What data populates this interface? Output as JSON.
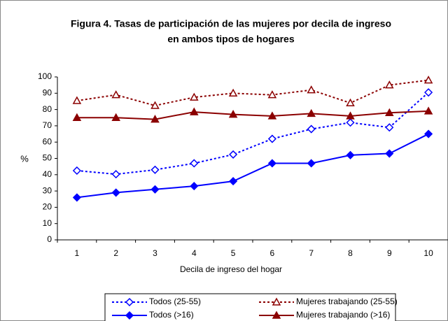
{
  "chart_data": {
    "type": "line",
    "title": [
      "Figura 4. Tasas de participación de las mujeres por decila de ingreso",
      "en ambos tipos de hogares"
    ],
    "x_label": "Decila de ingreso del hogar",
    "y_label": "%",
    "categories": [
      "1",
      "2",
      "3",
      "4",
      "5",
      "6",
      "7",
      "8",
      "9",
      "10"
    ],
    "ylim": [
      0,
      100
    ],
    "yticks": [
      0,
      10,
      20,
      30,
      40,
      50,
      60,
      70,
      80,
      90,
      100
    ],
    "grid": false,
    "legend": "bottom",
    "series": [
      {
        "name": "Todos (25-55)",
        "color": "#0000ff",
        "dashed": true,
        "marker": "diamond",
        "filled": false,
        "values": [
          42.5,
          40.3,
          43,
          47,
          52.4,
          62,
          68,
          72,
          69,
          90.5
        ]
      },
      {
        "name": "Mujeres trabajando (25-55)",
        "color": "#8b0000",
        "dashed": true,
        "marker": "triangle",
        "filled": false,
        "values": [
          85.4,
          89,
          82.4,
          87.5,
          90,
          89,
          92,
          84,
          95,
          98
        ]
      },
      {
        "name": "Todos (>16)",
        "color": "#0000ff",
        "dashed": false,
        "marker": "diamond",
        "filled": true,
        "values": [
          26,
          29,
          31,
          33,
          36,
          47,
          47,
          52,
          53,
          65
        ]
      },
      {
        "name": "Mujeres trabajando (>16)",
        "color": "#8b0000",
        "dashed": false,
        "marker": "triangle",
        "filled": true,
        "values": [
          75,
          75,
          74,
          78.5,
          77,
          76,
          77.5,
          76,
          78,
          79
        ]
      }
    ]
  }
}
